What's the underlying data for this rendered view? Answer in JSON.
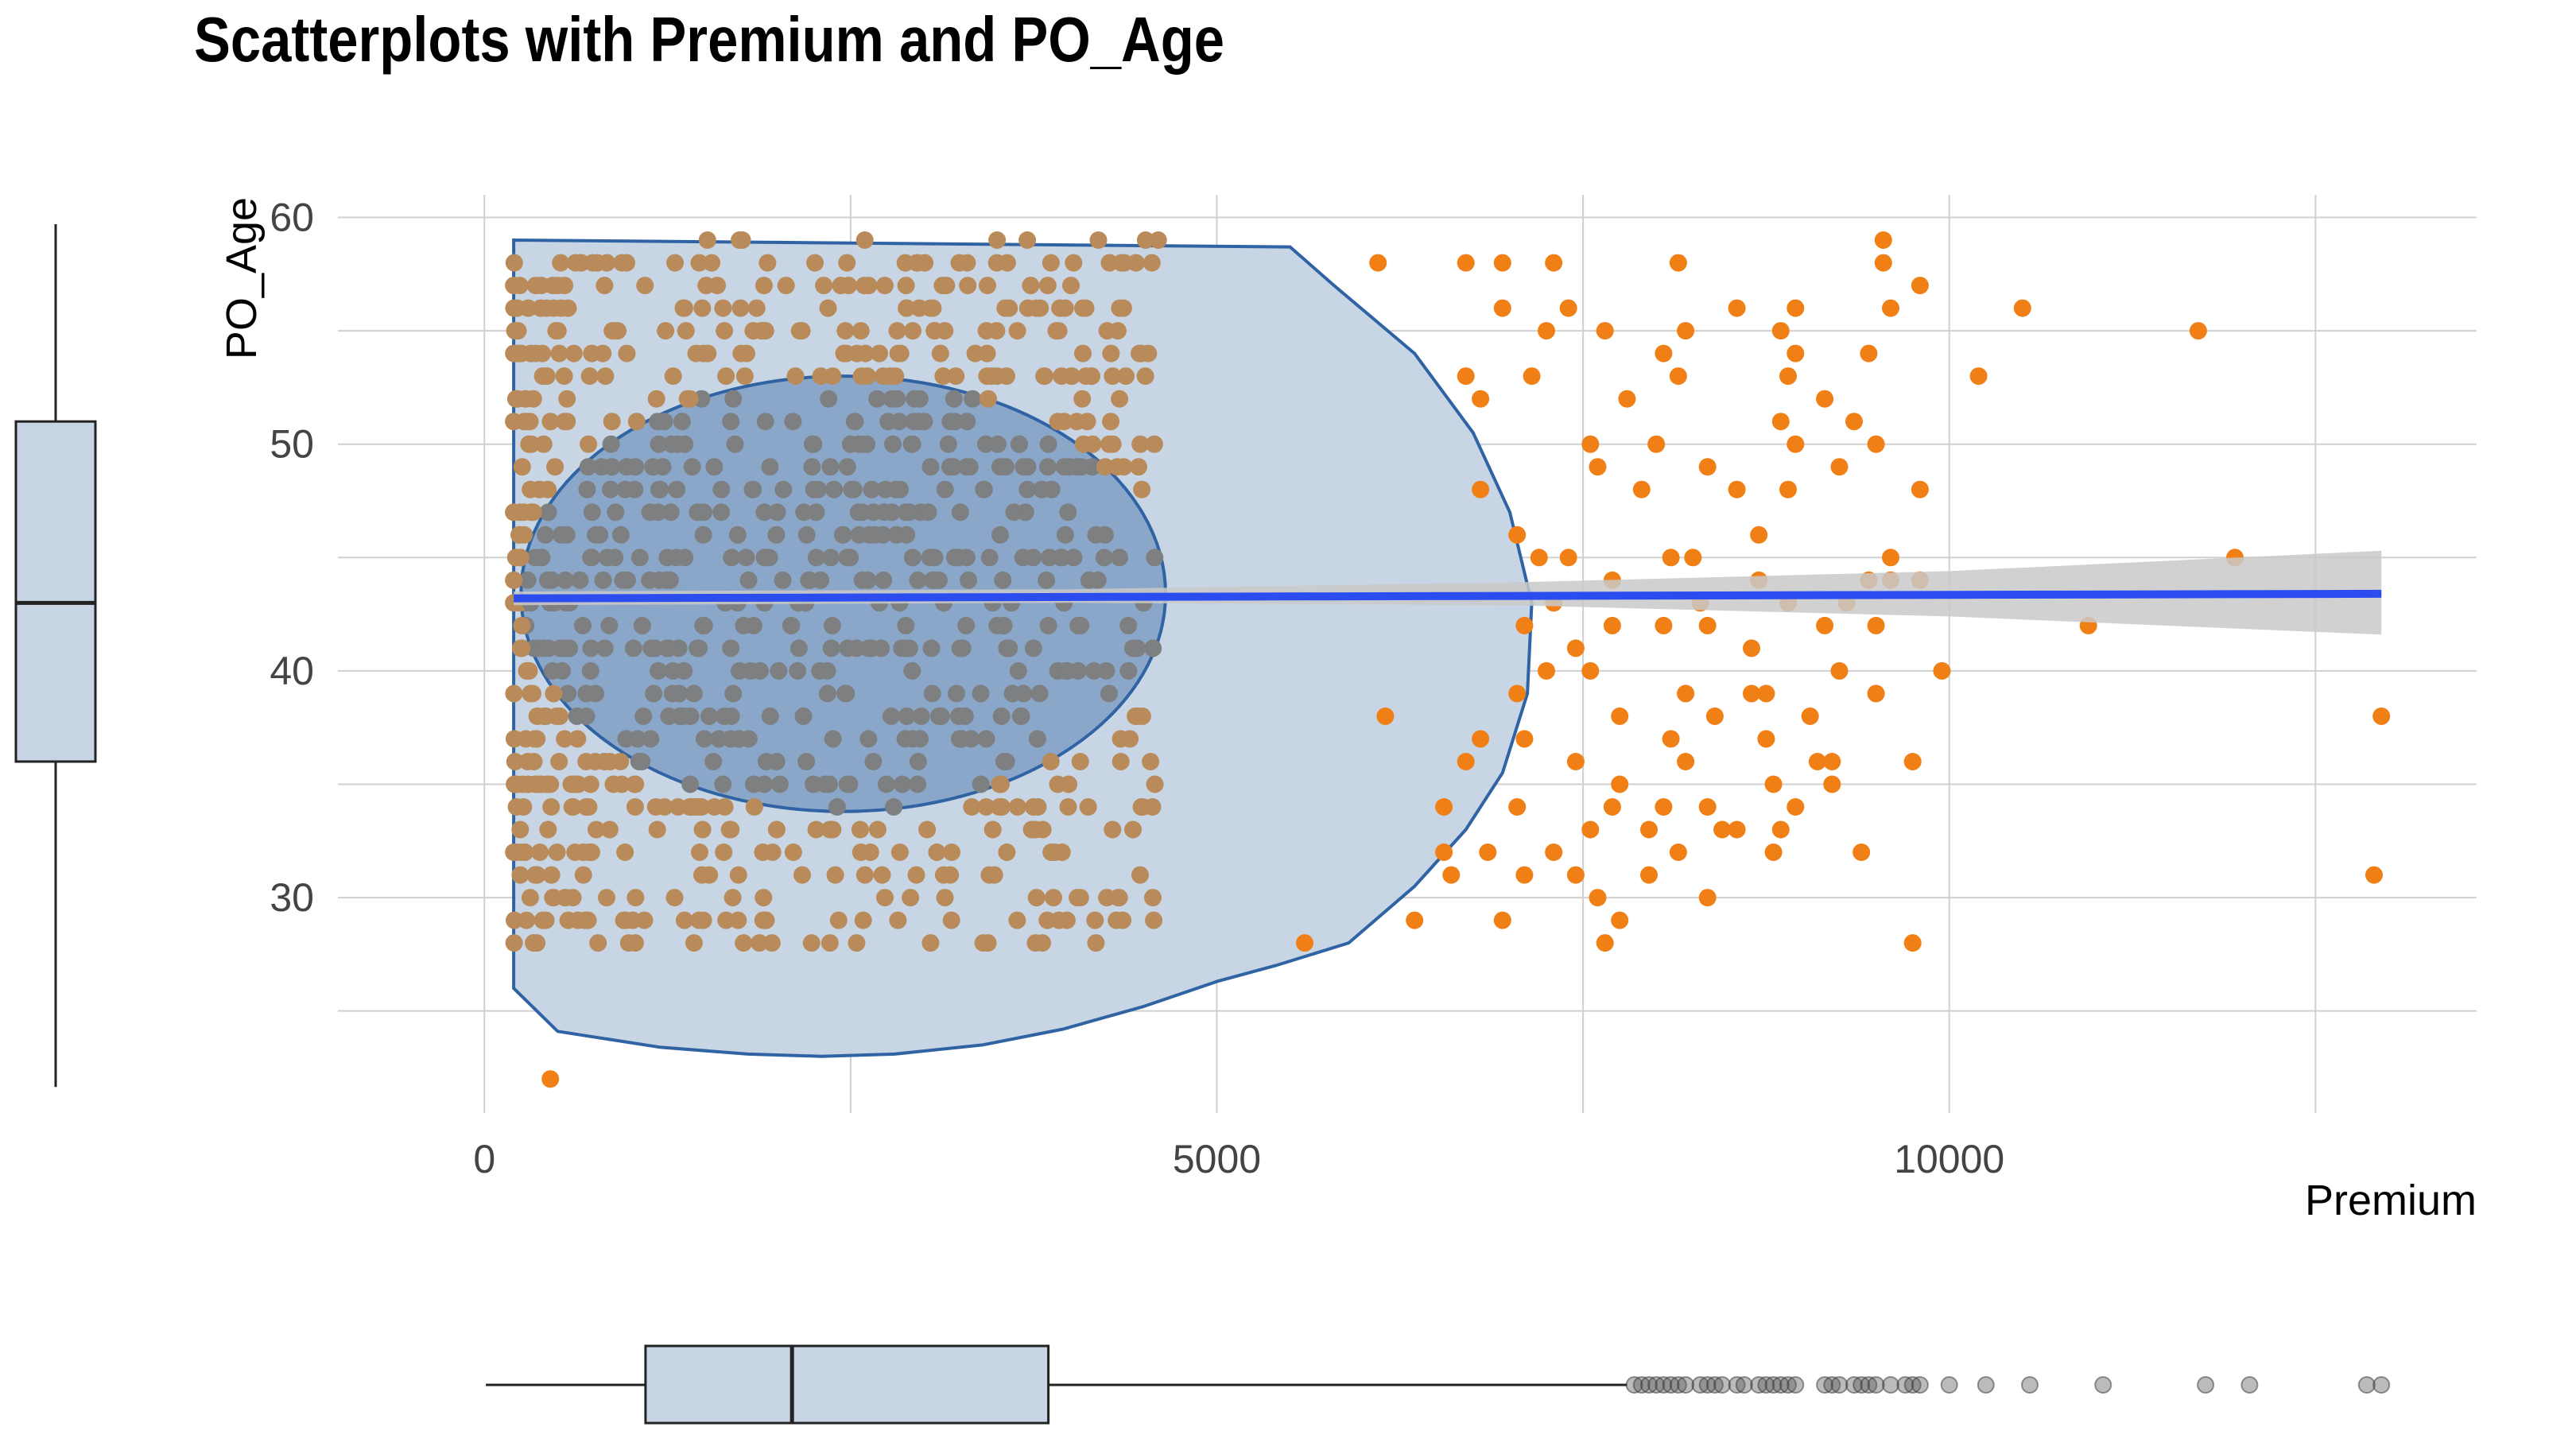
{
  "chart_data": {
    "type": "scatter",
    "title": "Scatterplots with Premium and PO_Age",
    "xlabel": "Premium",
    "ylabel": "PO_Age",
    "xlim": [
      -1000,
      13600
    ],
    "ylim": [
      20.5,
      61
    ],
    "x_ticks": [
      {
        "value": 0,
        "label": "0"
      },
      {
        "value": 5000,
        "label": "5000"
      },
      {
        "value": 10000,
        "label": "10000"
      }
    ],
    "y_ticks": [
      {
        "value": 30,
        "label": "30"
      },
      {
        "value": 40,
        "label": "40"
      },
      {
        "value": 50,
        "label": "50"
      },
      {
        "value": 60,
        "label": "60"
      }
    ],
    "grid": true,
    "colors": {
      "points": "#f07f16",
      "points_dense": "#b98a5a",
      "ellipse_fill": "#c5d3e3",
      "ellipse_stroke": "#2f63a3",
      "inner_fill": "#7f9fc4",
      "regression": "#2b4df0",
      "band": "#c9c9c9",
      "grid": "#d0d0d0",
      "box_fill": "#c6d4e3",
      "box_stroke": "#222222"
    },
    "dense_region": {
      "x_min": 200,
      "x_max": 4600,
      "y_min": 28,
      "y_max": 59,
      "approx_points": 900
    },
    "series": [
      {
        "points": [
          [
            450,
            22
          ],
          [
            5600,
            28
          ],
          [
            9750,
            28
          ],
          [
            7650,
            28
          ],
          [
            7750,
            29
          ],
          [
            6350,
            29
          ],
          [
            6950,
            29
          ],
          [
            7600,
            30
          ],
          [
            8350,
            30
          ],
          [
            12900,
            31
          ],
          [
            7100,
            31
          ],
          [
            6600,
            31
          ],
          [
            7450,
            31
          ],
          [
            7950,
            31
          ],
          [
            6550,
            32
          ],
          [
            6850,
            32
          ],
          [
            7300,
            32
          ],
          [
            8150,
            32
          ],
          [
            8800,
            32
          ],
          [
            9400,
            32
          ],
          [
            7550,
            33
          ],
          [
            7950,
            33
          ],
          [
            8450,
            33
          ],
          [
            8550,
            33
          ],
          [
            8850,
            33
          ],
          [
            6550,
            34
          ],
          [
            7050,
            34
          ],
          [
            7700,
            34
          ],
          [
            8050,
            34
          ],
          [
            8350,
            34
          ],
          [
            8950,
            34
          ],
          [
            9200,
            35
          ],
          [
            8800,
            35
          ],
          [
            7750,
            35
          ],
          [
            6700,
            36
          ],
          [
            7450,
            36
          ],
          [
            8200,
            36
          ],
          [
            9100,
            36
          ],
          [
            9200,
            36
          ],
          [
            9750,
            36
          ],
          [
            6800,
            37
          ],
          [
            7100,
            37
          ],
          [
            8100,
            37
          ],
          [
            8750,
            37
          ],
          [
            6150,
            38
          ],
          [
            7750,
            38
          ],
          [
            8400,
            38
          ],
          [
            9050,
            38
          ],
          [
            12950,
            38
          ],
          [
            7050,
            39
          ],
          [
            8200,
            39
          ],
          [
            8650,
            39
          ],
          [
            8750,
            39
          ],
          [
            9500,
            39
          ],
          [
            9250,
            40
          ],
          [
            9950,
            40
          ],
          [
            7250,
            40
          ],
          [
            7550,
            40
          ],
          [
            7450,
            41
          ],
          [
            8650,
            41
          ],
          [
            7100,
            42
          ],
          [
            7700,
            42
          ],
          [
            8050,
            42
          ],
          [
            8350,
            42
          ],
          [
            9150,
            42
          ],
          [
            9500,
            42
          ],
          [
            10950,
            42
          ],
          [
            7300,
            43
          ],
          [
            8300,
            43
          ],
          [
            8900,
            43
          ],
          [
            9300,
            43
          ],
          [
            7700,
            44
          ],
          [
            8700,
            44
          ],
          [
            9450,
            44
          ],
          [
            9600,
            44
          ],
          [
            9800,
            44
          ],
          [
            7200,
            45
          ],
          [
            7400,
            45
          ],
          [
            8100,
            45
          ],
          [
            8250,
            45
          ],
          [
            9600,
            45
          ],
          [
            11950,
            45
          ],
          [
            7050,
            46
          ],
          [
            8700,
            46
          ],
          [
            6800,
            48
          ],
          [
            7900,
            48
          ],
          [
            8550,
            48
          ],
          [
            8900,
            48
          ],
          [
            9800,
            48
          ],
          [
            7600,
            49
          ],
          [
            8350,
            49
          ],
          [
            9250,
            49
          ],
          [
            7550,
            50
          ],
          [
            8000,
            50
          ],
          [
            8950,
            50
          ],
          [
            9500,
            50
          ],
          [
            8850,
            51
          ],
          [
            9350,
            51
          ],
          [
            6800,
            52
          ],
          [
            7800,
            52
          ],
          [
            9150,
            52
          ],
          [
            6700,
            53
          ],
          [
            7150,
            53
          ],
          [
            8150,
            53
          ],
          [
            8900,
            53
          ],
          [
            10200,
            53
          ],
          [
            8050,
            54
          ],
          [
            8950,
            54
          ],
          [
            9450,
            54
          ],
          [
            8200,
            55
          ],
          [
            8850,
            55
          ],
          [
            7250,
            55
          ],
          [
            7650,
            55
          ],
          [
            11700,
            55
          ],
          [
            6950,
            56
          ],
          [
            7400,
            56
          ],
          [
            8550,
            56
          ],
          [
            8950,
            56
          ],
          [
            9600,
            56
          ],
          [
            10500,
            56
          ],
          [
            6100,
            58
          ],
          [
            6700,
            58
          ],
          [
            6950,
            58
          ],
          [
            7300,
            58
          ],
          [
            8150,
            58
          ],
          [
            9550,
            58
          ],
          [
            9550,
            59
          ],
          [
            9800,
            57
          ]
        ]
      }
    ],
    "regression_line": {
      "x": [
        200,
        12950
      ],
      "y": [
        43.2,
        43.4
      ]
    },
    "confidence_band": {
      "x": [
        200,
        4000,
        7000,
        10000,
        12950
      ],
      "lower": [
        42.9,
        43.0,
        42.9,
        42.4,
        41.6
      ],
      "upper": [
        43.5,
        43.6,
        43.9,
        44.4,
        45.3
      ]
    },
    "outer_ellipse": {
      "x": [
        200,
        200,
        5500,
        5800,
        6350,
        6750,
        7000,
        7150,
        7120,
        6950,
        6700,
        6350,
        5900,
        5400,
        5000,
        4500,
        3950,
        3400,
        2800,
        2300,
        1800,
        1200,
        500,
        200
      ],
      "y": [
        26,
        59,
        58.7,
        57,
        54,
        50.5,
        47,
        43,
        39,
        35.5,
        33,
        30.5,
        28,
        27,
        26.3,
        25.2,
        24.2,
        23.5,
        23.1,
        23.0,
        23.1,
        23.4,
        24.1,
        26
      ]
    },
    "inner_ellipse": {
      "cx": 2450,
      "cy": 43.4,
      "rx": 2200,
      "ry": 9.6
    },
    "marginal_y_box": {
      "lower_whisker": 22,
      "q1": 36,
      "median": 43,
      "q3": 51,
      "upper_whisker": 59
    },
    "marginal_x_box": {
      "lower_whisker": 200,
      "q1": 1100,
      "median": 2100,
      "q3": 3850,
      "upper_whisker": 7800,
      "outliers": [
        7850,
        7900,
        7950,
        8000,
        8050,
        8100,
        8150,
        8200,
        8300,
        8350,
        8400,
        8450,
        8550,
        8600,
        8700,
        8750,
        8800,
        8850,
        8900,
        8950,
        9150,
        9200,
        9250,
        9350,
        9400,
        9450,
        9500,
        9600,
        9700,
        9750,
        9800,
        10000,
        10250,
        10550,
        11050,
        11750,
        12050,
        12850,
        12950
      ]
    }
  }
}
